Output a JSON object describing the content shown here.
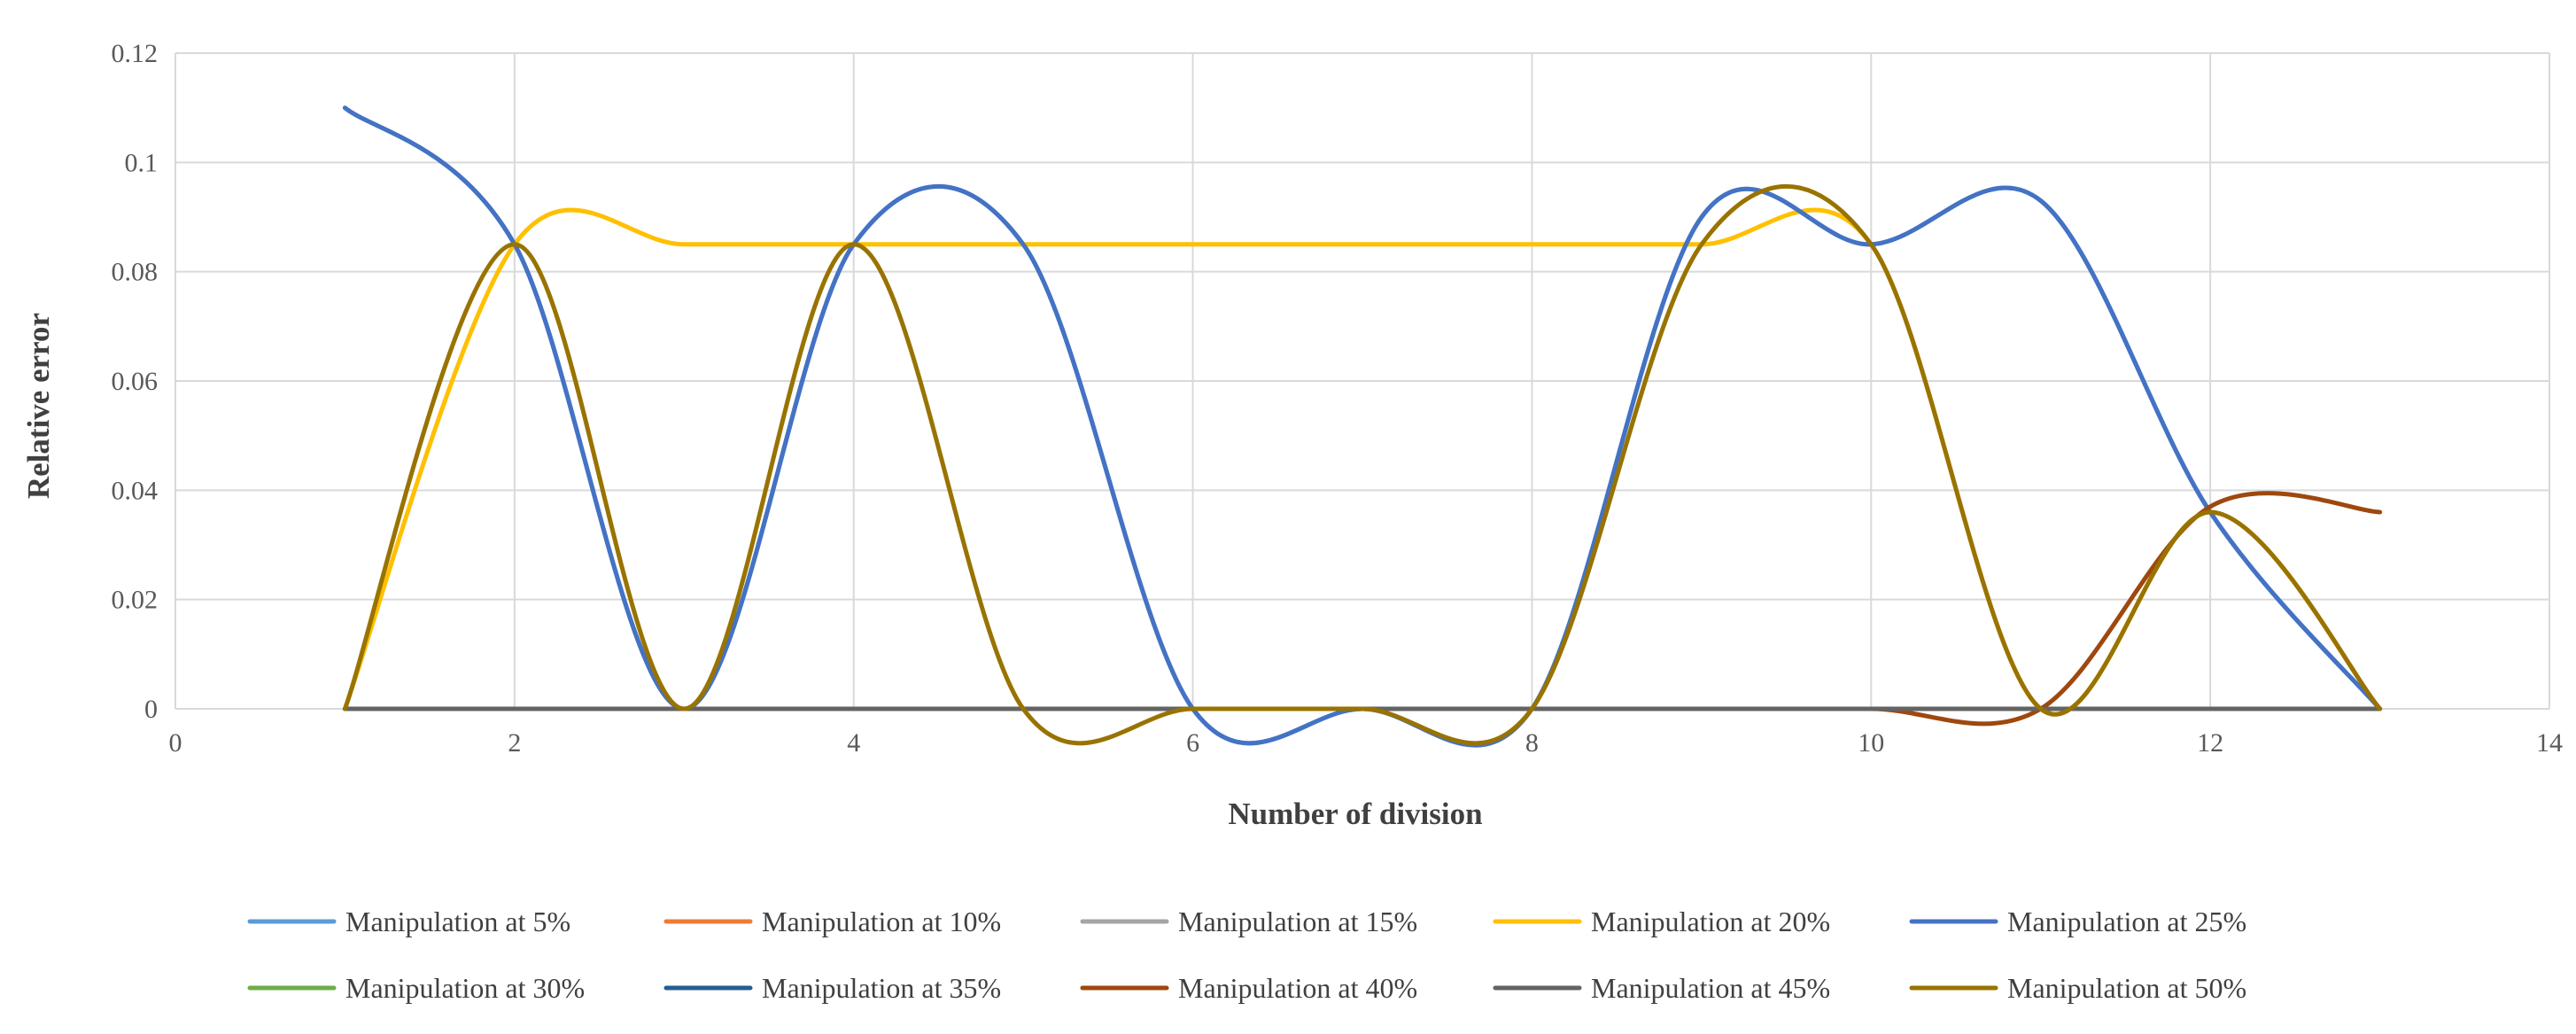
{
  "chart_data": {
    "type": "line",
    "smooth": true,
    "title": "",
    "xlabel": "Number  of division",
    "ylabel": "Relative  error",
    "xlim": [
      0,
      14
    ],
    "ylim": [
      0,
      0.12
    ],
    "xticks": [
      0,
      2,
      4,
      6,
      8,
      10,
      12,
      14
    ],
    "yticks": [
      0,
      0.02,
      0.04,
      0.06,
      0.08,
      0.1,
      0.12
    ],
    "x_tick_labels": [
      "0",
      "2",
      "4",
      "6",
      "8",
      "10",
      "12",
      "14"
    ],
    "y_tick_labels": [
      "0",
      "0.02",
      "0.04",
      "0.06",
      "0.08",
      "0.1",
      "0.12"
    ],
    "grid": true,
    "legend_position": "bottom",
    "x": [
      1,
      2,
      3,
      4,
      5,
      6,
      7,
      8,
      9,
      10,
      11,
      12,
      13
    ],
    "series": [
      {
        "name": "Manipulation at 5%",
        "color": "#5b9bd5",
        "values": [
          0.11,
          0.085,
          0,
          0.085,
          0.085,
          0,
          0,
          0,
          0.09,
          0.085,
          0.093,
          0.036,
          0
        ]
      },
      {
        "name": "Manipulation at 10%",
        "color": "#ed7d31",
        "values": [
          0,
          0,
          0,
          0,
          0,
          0,
          0,
          0,
          0,
          0,
          0,
          0,
          0
        ]
      },
      {
        "name": "Manipulation at 15%",
        "color": "#a5a5a5",
        "values": [
          0,
          0,
          0,
          0,
          0,
          0,
          0,
          0,
          0,
          0,
          0,
          0,
          0
        ]
      },
      {
        "name": "Manipulation at 20%",
        "color": "#ffc000",
        "values": [
          0,
          0.085,
          0.085,
          0.085,
          0.085,
          0.085,
          0.085,
          0.085,
          0.085,
          0.085,
          0,
          0.036,
          0
        ]
      },
      {
        "name": "Manipulation at 25%",
        "color": "#4472c4",
        "values": [
          0.11,
          0.085,
          0,
          0.085,
          0.085,
          0,
          0,
          0,
          0.09,
          0.085,
          0.093,
          0.036,
          0
        ]
      },
      {
        "name": "Manipulation at 30%",
        "color": "#70ad47",
        "values": [
          0,
          0,
          0,
          0,
          0,
          0,
          0,
          0,
          0,
          0,
          0,
          0,
          0
        ]
      },
      {
        "name": "Manipulation at 35%",
        "color": "#255e91",
        "values": [
          0,
          0,
          0,
          0,
          0,
          0,
          0,
          0,
          0,
          0,
          0,
          0,
          0
        ]
      },
      {
        "name": "Manipulation at 40%",
        "color": "#9e480e",
        "values": [
          0,
          0,
          0,
          0,
          0,
          0,
          0,
          0,
          0,
          0,
          0,
          0.037,
          0.036
        ]
      },
      {
        "name": "Manipulation at 45%",
        "color": "#636363",
        "values": [
          0,
          0,
          0,
          0,
          0,
          0,
          0,
          0,
          0,
          0,
          0,
          0,
          0
        ]
      },
      {
        "name": "Manipulation at 50%",
        "color": "#997300",
        "values": [
          0,
          0.085,
          0,
          0.085,
          0,
          0,
          0,
          0,
          0.085,
          0.085,
          0,
          0.036,
          0
        ]
      }
    ]
  }
}
